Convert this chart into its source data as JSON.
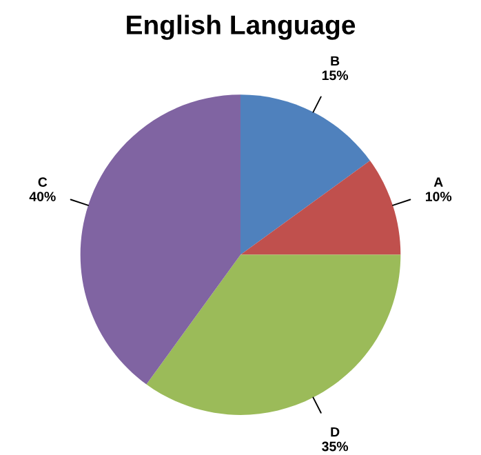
{
  "chart_data": {
    "type": "pie",
    "title": "English Language",
    "categories": [
      "B",
      "A",
      "D",
      "C"
    ],
    "values": [
      15,
      10,
      35,
      40
    ],
    "value_labels": [
      "15%",
      "10%",
      "35%",
      "40%"
    ],
    "colors": [
      "#4f81bd",
      "#c0504d",
      "#9bbb59",
      "#8064a2"
    ],
    "legend": false
  }
}
